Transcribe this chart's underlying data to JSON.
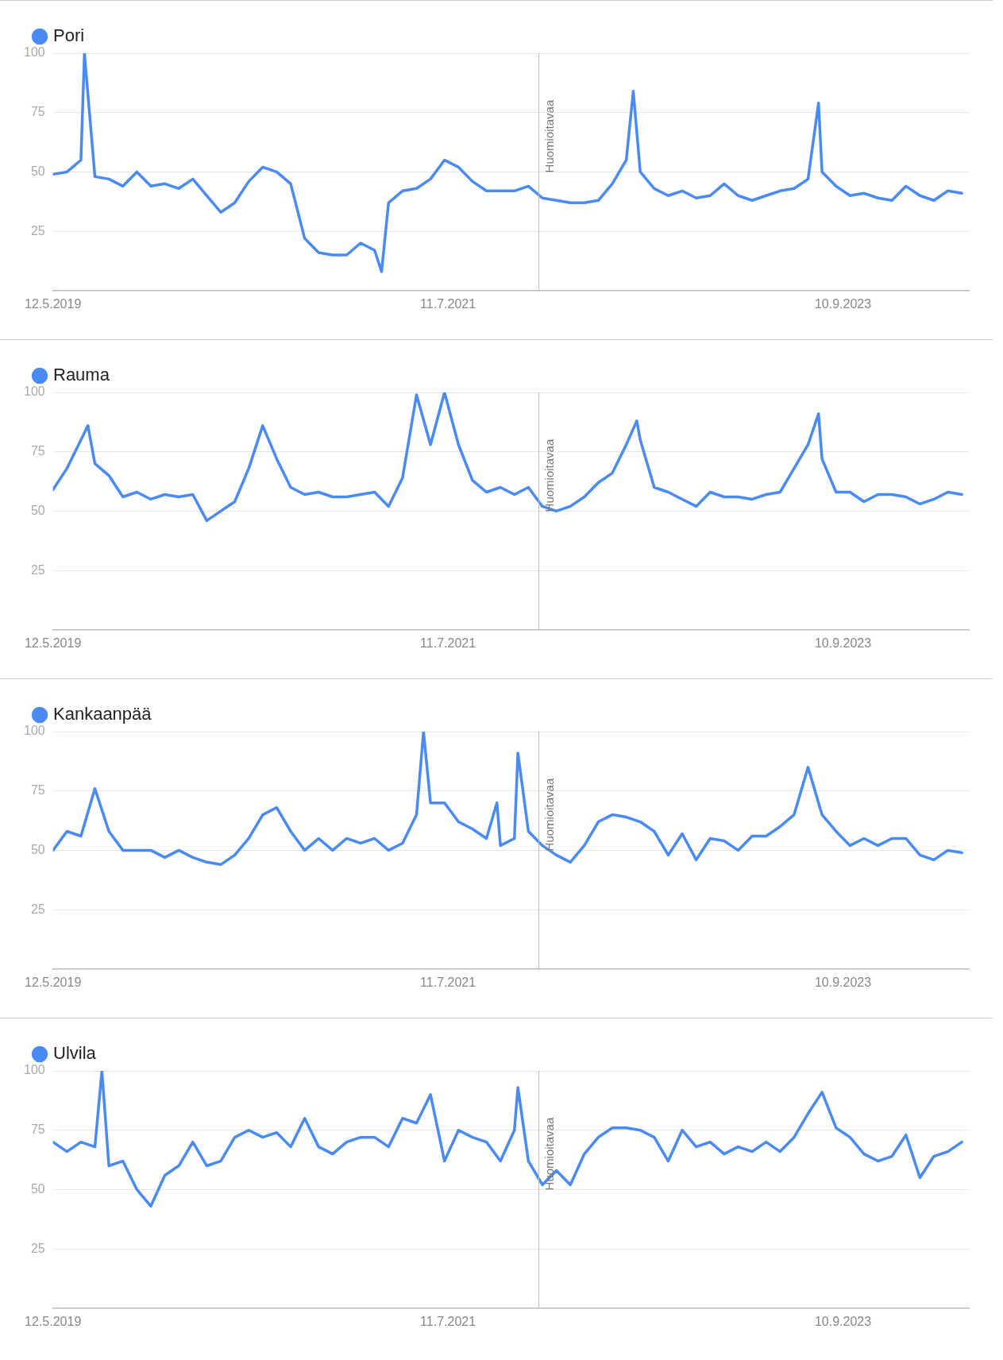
{
  "chart_data": [
    {
      "type": "line",
      "legend": "top left",
      "grid": "y",
      "ylim": [
        0,
        100
      ],
      "yticks": [
        25,
        50,
        75,
        100
      ],
      "xlim": [
        "2019-05-12",
        "2024-05-19"
      ],
      "xticks": [
        {
          "value": "2019-05-12",
          "label": "12.5.2019"
        },
        {
          "value": "2021-07-11",
          "label": "11.7.2021"
        },
        {
          "value": "2023-09-10",
          "label": "10.9.2023"
        }
      ],
      "ref_lines": [
        {
          "axis": "x",
          "value": "2022-01-09",
          "label": "Huomioitavaa"
        }
      ],
      "x": [
        "2019-05-12",
        "2019-06-09",
        "2019-07-07",
        "2019-07-14",
        "2019-08-04",
        "2019-09-01",
        "2019-09-29",
        "2019-10-27",
        "2019-11-24",
        "2019-12-22",
        "2020-01-19",
        "2020-02-16",
        "2020-03-15",
        "2020-04-12",
        "2020-05-10",
        "2020-06-07",
        "2020-07-05",
        "2020-08-02",
        "2020-08-30",
        "2020-09-27",
        "2020-10-25",
        "2020-11-22",
        "2020-12-20",
        "2021-01-17",
        "2021-02-14",
        "2021-02-28",
        "2021-03-14",
        "2021-04-11",
        "2021-05-09",
        "2021-06-06",
        "2021-07-04",
        "2021-08-01",
        "2021-08-29",
        "2021-09-26",
        "2021-10-24",
        "2021-11-21",
        "2021-12-19",
        "2022-01-16",
        "2022-02-13",
        "2022-03-13",
        "2022-04-10",
        "2022-05-08",
        "2022-06-05",
        "2022-07-03",
        "2022-07-17",
        "2022-07-31",
        "2022-08-28",
        "2022-09-25",
        "2022-10-23",
        "2022-11-20",
        "2022-12-18",
        "2023-01-15",
        "2023-02-12",
        "2023-03-12",
        "2023-04-09",
        "2023-05-07",
        "2023-06-04",
        "2023-07-02",
        "2023-07-23",
        "2023-07-30",
        "2023-08-27",
        "2023-09-24",
        "2023-10-22",
        "2023-11-19",
        "2023-12-17",
        "2024-01-14",
        "2024-02-11",
        "2024-03-10",
        "2024-04-07",
        "2024-05-05"
      ],
      "series": [
        {
          "name": "Pori",
          "color": "#4a8af4",
          "values": [
            49,
            50,
            55,
            100,
            48,
            47,
            44,
            50,
            44,
            45,
            43,
            47,
            40,
            33,
            37,
            46,
            52,
            50,
            45,
            22,
            16,
            15,
            15,
            20,
            17,
            8,
            37,
            42,
            43,
            47,
            55,
            52,
            46,
            42,
            42,
            42,
            44,
            39,
            38,
            37,
            37,
            38,
            45,
            55,
            84,
            50,
            43,
            40,
            42,
            39,
            40,
            45,
            40,
            38,
            40,
            42,
            43,
            47,
            79,
            50,
            44,
            40,
            41,
            39,
            38,
            44,
            40,
            38,
            42,
            41
          ]
        }
      ]
    },
    {
      "type": "line",
      "legend": "top left",
      "grid": "y",
      "ylim": [
        0,
        100
      ],
      "yticks": [
        25,
        50,
        75,
        100
      ],
      "xlim": [
        "2019-05-12",
        "2024-05-19"
      ],
      "xticks": [
        {
          "value": "2019-05-12",
          "label": "12.5.2019"
        },
        {
          "value": "2021-07-11",
          "label": "11.7.2021"
        },
        {
          "value": "2023-09-10",
          "label": "10.9.2023"
        }
      ],
      "ref_lines": [
        {
          "axis": "x",
          "value": "2022-01-09",
          "label": "Huomioitavaa"
        }
      ],
      "x": [
        "2019-05-12",
        "2019-06-09",
        "2019-07-07",
        "2019-07-21",
        "2019-08-04",
        "2019-09-01",
        "2019-09-29",
        "2019-10-27",
        "2019-11-24",
        "2019-12-22",
        "2020-01-19",
        "2020-02-16",
        "2020-03-15",
        "2020-04-12",
        "2020-05-10",
        "2020-06-07",
        "2020-07-05",
        "2020-08-02",
        "2020-08-30",
        "2020-09-27",
        "2020-10-25",
        "2020-11-22",
        "2020-12-20",
        "2021-01-17",
        "2021-02-14",
        "2021-03-14",
        "2021-04-11",
        "2021-05-09",
        "2021-06-06",
        "2021-07-04",
        "2021-08-01",
        "2021-08-29",
        "2021-09-26",
        "2021-10-24",
        "2021-11-21",
        "2021-12-19",
        "2022-01-16",
        "2022-02-13",
        "2022-03-13",
        "2022-04-10",
        "2022-05-08",
        "2022-06-05",
        "2022-07-03",
        "2022-07-24",
        "2022-07-31",
        "2022-08-28",
        "2022-09-25",
        "2022-10-23",
        "2022-11-20",
        "2022-12-18",
        "2023-01-15",
        "2023-02-12",
        "2023-03-12",
        "2023-04-09",
        "2023-05-07",
        "2023-06-04",
        "2023-07-02",
        "2023-07-23",
        "2023-07-30",
        "2023-08-27",
        "2023-09-24",
        "2023-10-22",
        "2023-11-19",
        "2023-12-17",
        "2024-01-14",
        "2024-02-11",
        "2024-03-10",
        "2024-04-07",
        "2024-05-05"
      ],
      "series": [
        {
          "name": "Rauma",
          "color": "#4a8af4",
          "values": [
            59,
            68,
            80,
            86,
            70,
            65,
            56,
            58,
            55,
            57,
            56,
            57,
            46,
            50,
            54,
            68,
            86,
            72,
            60,
            57,
            58,
            56,
            56,
            57,
            58,
            52,
            64,
            99,
            78,
            100,
            78,
            63,
            58,
            60,
            57,
            60,
            52,
            50,
            52,
            56,
            62,
            66,
            78,
            88,
            80,
            60,
            58,
            55,
            52,
            58,
            56,
            56,
            55,
            57,
            58,
            68,
            78,
            91,
            72,
            58,
            58,
            54,
            57,
            57,
            56,
            53,
            55,
            58,
            57
          ]
        }
      ]
    },
    {
      "type": "line",
      "legend": "top left",
      "grid": "y",
      "ylim": [
        0,
        100
      ],
      "yticks": [
        25,
        50,
        75,
        100
      ],
      "xlim": [
        "2019-05-12",
        "2024-05-19"
      ],
      "xticks": [
        {
          "value": "2019-05-12",
          "label": "12.5.2019"
        },
        {
          "value": "2021-07-11",
          "label": "11.7.2021"
        },
        {
          "value": "2023-09-10",
          "label": "10.9.2023"
        }
      ],
      "ref_lines": [
        {
          "axis": "x",
          "value": "2022-01-09",
          "label": "Huomioitavaa"
        }
      ],
      "x": [
        "2019-05-12",
        "2019-06-09",
        "2019-07-07",
        "2019-08-04",
        "2019-09-01",
        "2019-09-29",
        "2019-10-27",
        "2019-11-24",
        "2019-12-22",
        "2020-01-19",
        "2020-02-16",
        "2020-03-15",
        "2020-04-12",
        "2020-05-10",
        "2020-06-07",
        "2020-07-05",
        "2020-08-02",
        "2020-08-30",
        "2020-09-27",
        "2020-10-25",
        "2020-11-22",
        "2020-12-20",
        "2021-01-17",
        "2021-02-14",
        "2021-03-14",
        "2021-04-11",
        "2021-05-09",
        "2021-05-23",
        "2021-06-06",
        "2021-07-04",
        "2021-08-01",
        "2021-08-29",
        "2021-09-26",
        "2021-10-17",
        "2021-10-24",
        "2021-11-21",
        "2021-11-28",
        "2021-12-19",
        "2022-01-16",
        "2022-02-13",
        "2022-03-13",
        "2022-04-10",
        "2022-05-08",
        "2022-06-05",
        "2022-07-03",
        "2022-07-31",
        "2022-08-28",
        "2022-09-25",
        "2022-10-23",
        "2022-11-20",
        "2022-12-18",
        "2023-01-15",
        "2023-02-12",
        "2023-03-12",
        "2023-04-09",
        "2023-05-07",
        "2023-06-04",
        "2023-07-02",
        "2023-07-30",
        "2023-08-27",
        "2023-09-24",
        "2023-10-22",
        "2023-11-19",
        "2023-12-17",
        "2024-01-14",
        "2024-02-11",
        "2024-03-10",
        "2024-04-07",
        "2024-05-05"
      ],
      "series": [
        {
          "name": "Kankaanpää",
          "color": "#4a8af4",
          "values": [
            50,
            58,
            56,
            76,
            58,
            50,
            50,
            50,
            47,
            50,
            47,
            45,
            44,
            48,
            55,
            65,
            68,
            58,
            50,
            55,
            50,
            55,
            53,
            55,
            50,
            53,
            65,
            100,
            70,
            70,
            62,
            59,
            55,
            70,
            52,
            55,
            91,
            58,
            52,
            48,
            45,
            52,
            62,
            65,
            64,
            62,
            58,
            48,
            57,
            46,
            55,
            54,
            50,
            56,
            56,
            60,
            65,
            85,
            65,
            58,
            52,
            55,
            52,
            55,
            55,
            48,
            46,
            50,
            49
          ]
        }
      ]
    },
    {
      "type": "line",
      "legend": "top left",
      "grid": "y",
      "ylim": [
        0,
        100
      ],
      "yticks": [
        25,
        50,
        75,
        100
      ],
      "xlim": [
        "2019-05-12",
        "2024-05-19"
      ],
      "xticks": [
        {
          "value": "2019-05-12",
          "label": "12.5.2019"
        },
        {
          "value": "2021-07-11",
          "label": "11.7.2021"
        },
        {
          "value": "2023-09-10",
          "label": "10.9.2023"
        }
      ],
      "ref_lines": [
        {
          "axis": "x",
          "value": "2022-01-09",
          "label": "Huomioitavaa"
        }
      ],
      "x": [
        "2019-05-12",
        "2019-06-09",
        "2019-07-07",
        "2019-08-04",
        "2019-08-18",
        "2019-09-01",
        "2019-09-29",
        "2019-10-27",
        "2019-11-24",
        "2019-12-22",
        "2020-01-19",
        "2020-02-16",
        "2020-03-15",
        "2020-04-12",
        "2020-05-10",
        "2020-06-07",
        "2020-07-05",
        "2020-08-02",
        "2020-08-30",
        "2020-09-27",
        "2020-10-25",
        "2020-11-22",
        "2020-12-20",
        "2021-01-17",
        "2021-02-14",
        "2021-03-14",
        "2021-04-11",
        "2021-05-09",
        "2021-06-06",
        "2021-07-04",
        "2021-08-01",
        "2021-08-29",
        "2021-09-26",
        "2021-10-24",
        "2021-11-21",
        "2021-11-28",
        "2021-12-19",
        "2022-01-16",
        "2022-02-13",
        "2022-03-13",
        "2022-04-10",
        "2022-05-08",
        "2022-06-05",
        "2022-07-03",
        "2022-07-31",
        "2022-08-28",
        "2022-09-25",
        "2022-10-23",
        "2022-11-20",
        "2022-12-18",
        "2023-01-15",
        "2023-02-12",
        "2023-03-12",
        "2023-04-09",
        "2023-05-07",
        "2023-06-04",
        "2023-07-02",
        "2023-07-30",
        "2023-08-27",
        "2023-09-24",
        "2023-10-22",
        "2023-11-19",
        "2023-12-17",
        "2024-01-14",
        "2024-02-11",
        "2024-03-10",
        "2024-04-07",
        "2024-05-05"
      ],
      "series": [
        {
          "name": "Ulvila",
          "color": "#4a8af4",
          "values": [
            70,
            66,
            70,
            68,
            100,
            60,
            62,
            50,
            43,
            56,
            60,
            70,
            60,
            62,
            72,
            75,
            72,
            74,
            68,
            80,
            68,
            65,
            70,
            72,
            72,
            68,
            80,
            78,
            90,
            62,
            75,
            72,
            70,
            62,
            75,
            93,
            62,
            52,
            58,
            52,
            65,
            72,
            76,
            76,
            75,
            72,
            62,
            75,
            68,
            70,
            65,
            68,
            66,
            70,
            66,
            72,
            82,
            91,
            76,
            72,
            65,
            62,
            64,
            73,
            55,
            64,
            66,
            70
          ]
        }
      ]
    }
  ]
}
